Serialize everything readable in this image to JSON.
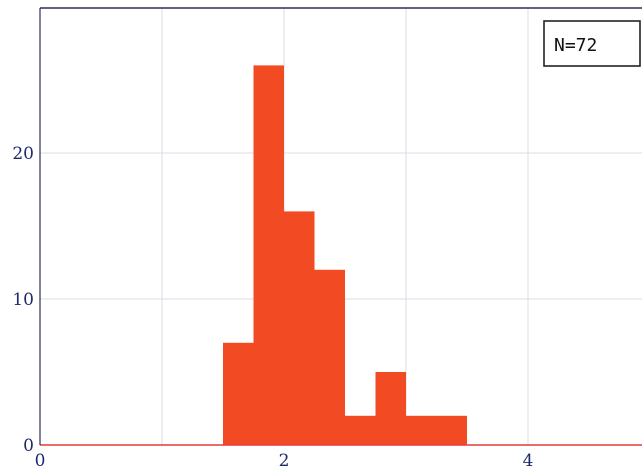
{
  "chart_data": {
    "type": "bar",
    "bins": [
      {
        "start": 1.5,
        "end": 1.75,
        "count": 7
      },
      {
        "start": 1.75,
        "end": 2.0,
        "count": 26
      },
      {
        "start": 2.0,
        "end": 2.25,
        "count": 16
      },
      {
        "start": 2.25,
        "end": 2.5,
        "count": 12
      },
      {
        "start": 2.5,
        "end": 2.75,
        "count": 2
      },
      {
        "start": 2.75,
        "end": 3.0,
        "count": 5
      },
      {
        "start": 3.0,
        "end": 3.25,
        "count": 2
      },
      {
        "start": 3.25,
        "end": 3.5,
        "count": 2
      }
    ],
    "xlim": [
      0,
      5
    ],
    "ylim": [
      0,
      30
    ],
    "x_ticks": [
      {
        "value": 0,
        "label": "0"
      },
      {
        "value": 2,
        "label": "2"
      },
      {
        "value": 4,
        "label": "4"
      }
    ],
    "y_ticks": [
      {
        "value": 0,
        "label": "0"
      },
      {
        "value": 10,
        "label": "10"
      },
      {
        "value": 20,
        "label": "20"
      }
    ],
    "annotation": "N=72",
    "annotation_position": "top-right",
    "grid": true,
    "bar_color": "#f24a22",
    "axis_color": "#e23a3a",
    "grid_color": "#d9dde6",
    "tick_color": "#1f2a6b",
    "frame_color": "#2b2f55"
  }
}
